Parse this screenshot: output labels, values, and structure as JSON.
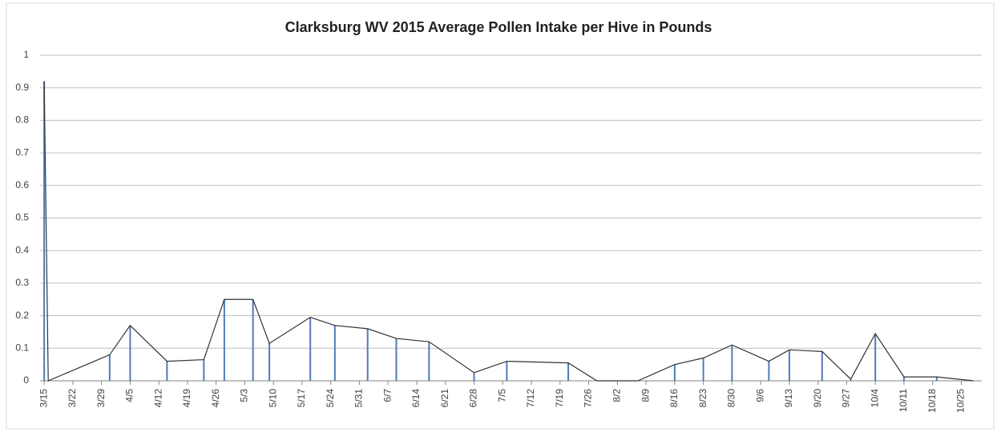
{
  "chart_data": {
    "type": "line",
    "title": "Clarksburg WV 2015 Average Pollen Intake per Hive in Pounds",
    "x": [
      "3/15",
      "3/16",
      "3/31",
      "4/5",
      "4/14",
      "4/23",
      "4/28",
      "5/5",
      "5/9",
      "5/19",
      "5/25",
      "6/2",
      "6/9",
      "6/17",
      "6/28",
      "7/6",
      "7/21",
      "7/28",
      "8/7",
      "8/16",
      "8/23",
      "8/30",
      "9/8",
      "9/13",
      "9/21",
      "9/28",
      "10/4",
      "10/11",
      "10/19",
      "10/28"
    ],
    "series": [
      {
        "name": "Average Pollen Intake",
        "color": "#333333",
        "drop_line_color": "#4f7bb8",
        "values": [
          0.92,
          0,
          0.08,
          0.17,
          0.06,
          0.065,
          0.25,
          0.25,
          0.115,
          0.195,
          0.17,
          0.16,
          0.13,
          0.12,
          0.025,
          0.06,
          0.055,
          0,
          0,
          0.05,
          0.07,
          0.11,
          0.06,
          0.095,
          0.09,
          0.005,
          0.145,
          0.012,
          0.012,
          0
        ]
      }
    ],
    "xlim": [
      "3/14",
      "10/30"
    ],
    "xticks": [
      "3/15",
      "3/22",
      "3/29",
      "4/5",
      "4/12",
      "4/19",
      "4/26",
      "5/3",
      "5/10",
      "5/17",
      "5/24",
      "5/31",
      "6/7",
      "6/14",
      "6/21",
      "6/28",
      "7/5",
      "7/12",
      "7/19",
      "7/26",
      "8/2",
      "8/9",
      "8/16",
      "8/23",
      "8/30",
      "9/6",
      "9/13",
      "9/20",
      "9/27",
      "10/4",
      "10/11",
      "10/18",
      "10/25"
    ],
    "ylim": [
      0,
      1
    ],
    "yticks": [
      0,
      0.1,
      0.2,
      0.3,
      0.4,
      0.5,
      0.6,
      0.7,
      0.8,
      0.9,
      1
    ],
    "grid": true,
    "drop_lines": true
  }
}
